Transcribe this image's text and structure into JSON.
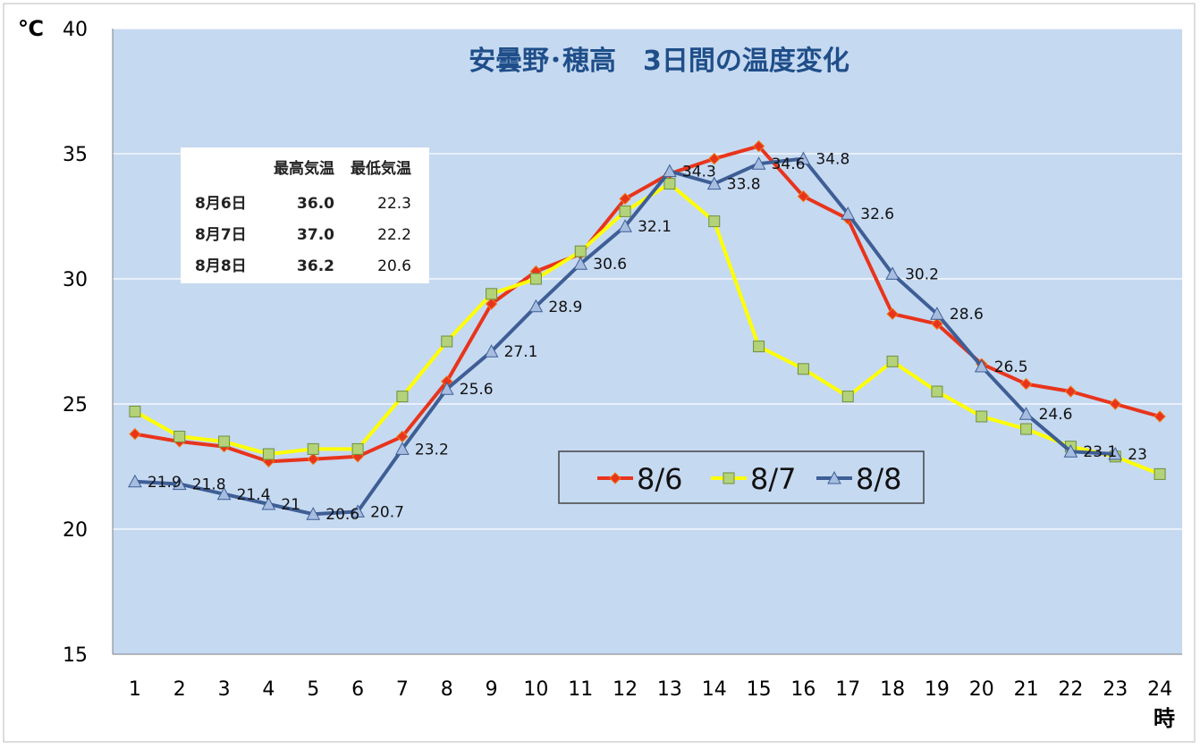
{
  "chart_data": {
    "type": "line",
    "title": "安曇野･穂高　3日間の温度変化",
    "ylabel": "℃",
    "xlabel": "時",
    "ylim": [
      15,
      40
    ],
    "yticks": [
      15,
      20,
      25,
      30,
      35,
      40
    ],
    "x": [
      1,
      2,
      3,
      4,
      5,
      6,
      7,
      8,
      9,
      10,
      11,
      12,
      13,
      14,
      15,
      16,
      17,
      18,
      19,
      20,
      21,
      22,
      23,
      24
    ],
    "grid": true,
    "legend_position": "bottom-center",
    "series": [
      {
        "name": "8/6",
        "color": "#e8341c",
        "marker": "diamond",
        "values": [
          23.8,
          23.5,
          23.3,
          22.7,
          22.8,
          22.9,
          23.7,
          25.9,
          29.0,
          30.3,
          31.0,
          33.2,
          34.2,
          34.8,
          35.3,
          33.3,
          32.4,
          28.6,
          28.2,
          26.6,
          25.8,
          25.5,
          25.0,
          24.5
        ]
      },
      {
        "name": "8/7",
        "color": "#ffff00",
        "marker": "square",
        "values": [
          24.7,
          23.7,
          23.5,
          23.0,
          23.2,
          23.2,
          25.3,
          27.5,
          29.4,
          30.0,
          31.1,
          32.7,
          33.8,
          32.3,
          27.3,
          26.4,
          25.3,
          26.7,
          25.5,
          24.5,
          24.0,
          23.3,
          22.9,
          22.2
        ]
      },
      {
        "name": "8/8",
        "color": "#3e5e95",
        "marker": "triangle",
        "values": [
          21.9,
          21.8,
          21.4,
          21,
          20.6,
          20.7,
          23.2,
          25.6,
          27.1,
          28.9,
          30.6,
          32.1,
          34.3,
          33.8,
          34.6,
          34.8,
          32.6,
          30.2,
          28.6,
          26.5,
          24.6,
          23.1,
          23,
          null
        ],
        "labels": [
          "21.9",
          "21.8",
          "21.4",
          "21",
          "20.6",
          "20.7",
          "23.2",
          "25.6",
          "27.1",
          "28.9",
          "30.6",
          "32.1",
          "34.3",
          "33.8",
          "34.6",
          "34.8",
          "32.6",
          "30.2",
          "28.6",
          "26.5",
          "24.6",
          "23.1",
          "23",
          ""
        ]
      }
    ],
    "table": {
      "headers": [
        "",
        "最高気温",
        "最低気温"
      ],
      "rows": [
        [
          "8月6日",
          "36.0",
          "22.3"
        ],
        [
          "8月7日",
          "37.0",
          "22.2"
        ],
        [
          "8月8日",
          "36.2",
          "20.6"
        ]
      ]
    }
  }
}
